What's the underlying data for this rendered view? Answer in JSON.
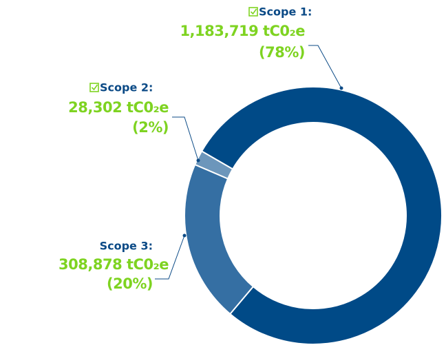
{
  "chart_data": {
    "type": "donut",
    "categories": [
      "Scope 1:",
      "Scope 2:",
      "Scope 3:"
    ],
    "values": [
      1183719,
      28302,
      308878
    ],
    "value_labels": [
      "1,183,719 tC0₂e",
      "28,302 tC0₂e",
      "308,878 tC0₂e"
    ],
    "percent_labels": [
      "(78%)",
      "(2%)",
      "(20%)"
    ],
    "colors": [
      "#004a87",
      "#6c96bb",
      "#356fa3"
    ]
  }
}
